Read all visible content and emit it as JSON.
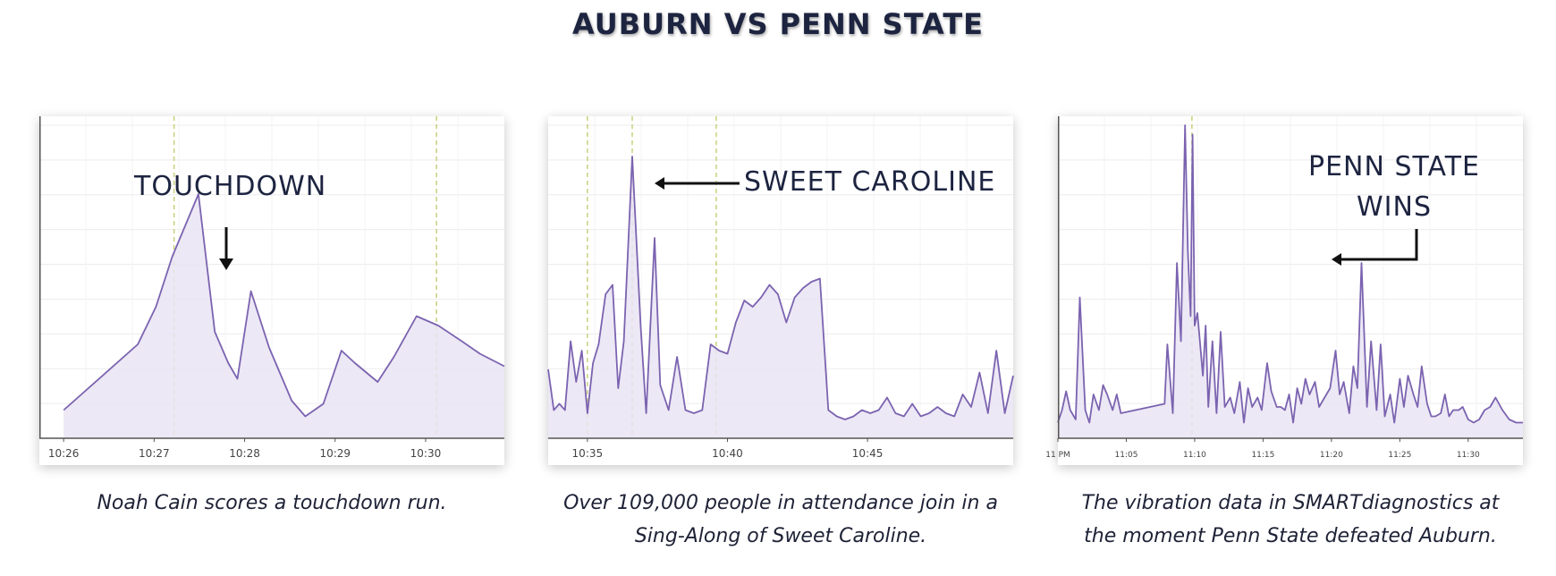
{
  "title": "AUBURN VS PENN STATE",
  "colors": {
    "line": "#7b63b0",
    "fill": "#e9e4f3",
    "marker": "#c9cf7a",
    "grid": "#ececec",
    "axis": "#555555",
    "title": "#1d2440"
  },
  "chart_data": [
    {
      "type": "area",
      "annotation": "TOUCHDOWN",
      "xticks": [
        "10:26",
        "10:27",
        "10:28",
        "10:29",
        "10:30"
      ],
      "xrange": [
        10.25,
        15.25
      ],
      "ylim": [
        0,
        100
      ],
      "markers": [
        11.6,
        14.5
      ],
      "x": [
        10.38,
        11.2,
        11.4,
        11.58,
        11.87,
        12.05,
        12.2,
        12.3,
        12.45,
        12.65,
        12.9,
        13.05,
        13.25,
        13.45,
        13.6,
        13.85,
        14.03,
        14.28,
        14.52,
        14.78,
        14.98,
        15.25
      ],
      "y": [
        9,
        30,
        42,
        58,
        78,
        34,
        24,
        19,
        47,
        29,
        12,
        7,
        11,
        28,
        24,
        18,
        26,
        39,
        36,
        31,
        27,
        23
      ],
      "caption": [
        "Noah Cain scores a touchdown run."
      ]
    },
    {
      "type": "area",
      "annotation": "SWEET CAROLINE",
      "xticks": [
        "10:35",
        "10:40",
        "10:45"
      ],
      "xrange": [
        33.6,
        50.2
      ],
      "ylim": [
        0,
        100
      ],
      "markers": [
        35,
        36.6,
        39.6
      ],
      "x": [
        33.6,
        33.8,
        34.0,
        34.2,
        34.4,
        34.6,
        34.8,
        35.0,
        35.2,
        35.4,
        35.65,
        35.9,
        36.1,
        36.3,
        36.6,
        36.9,
        37.1,
        37.4,
        37.6,
        37.9,
        38.2,
        38.5,
        38.8,
        39.1,
        39.4,
        39.7,
        40.0,
        40.3,
        40.6,
        40.9,
        41.2,
        41.5,
        41.8,
        42.1,
        42.4,
        42.7,
        43.0,
        43.3,
        43.6,
        43.9,
        44.2,
        44.5,
        44.8,
        45.1,
        45.4,
        45.7,
        46.0,
        46.3,
        46.6,
        46.9,
        47.2,
        47.5,
        47.8,
        48.1,
        48.4,
        48.7,
        49.0,
        49.3,
        49.6,
        49.9,
        50.2
      ],
      "y": [
        22,
        9,
        11,
        9,
        31,
        18,
        28,
        8,
        24,
        30,
        46,
        49,
        16,
        31,
        90,
        36,
        8,
        64,
        17,
        9,
        26,
        9,
        8,
        9,
        30,
        28,
        27,
        37,
        44,
        42,
        45,
        49,
        46,
        37,
        45,
        48,
        50,
        51,
        9,
        7,
        6,
        7,
        9,
        8,
        9,
        13,
        8,
        7,
        11,
        7,
        8,
        10,
        8,
        7,
        14,
        10,
        21,
        8,
        28,
        8,
        20
      ],
      "caption": [
        "Over 109,000 people in attendance join in a",
        "Sing-Along of Sweet Caroline."
      ]
    },
    {
      "type": "area",
      "annotation": [
        "PENN STATE",
        "WINS"
      ],
      "xticks": [
        "11 PM",
        "11:05",
        "11:10",
        "11:15",
        "11:20",
        "11:25",
        "11:30"
      ],
      "xrange": [
        0,
        34
      ],
      "ylim": [
        0,
        100
      ],
      "markers": [
        9.8
      ],
      "x": [
        0,
        0.3,
        0.6,
        0.9,
        1.3,
        1.6,
        2.0,
        2.3,
        2.6,
        3.0,
        3.3,
        3.6,
        4.0,
        4.3,
        4.6,
        7.8,
        8.0,
        8.4,
        8.7,
        9.0,
        9.3,
        9.5,
        9.7,
        9.85,
        10.0,
        10.2,
        10.4,
        10.6,
        10.8,
        11.0,
        11.3,
        11.6,
        11.9,
        12.2,
        12.6,
        12.9,
        13.3,
        13.6,
        13.9,
        14.2,
        14.6,
        14.9,
        15.3,
        15.6,
        16.0,
        16.3,
        16.6,
        16.9,
        17.2,
        17.5,
        17.8,
        18.1,
        18.4,
        18.8,
        19.1,
        19.5,
        19.9,
        20.3,
        20.6,
        20.9,
        21.3,
        21.6,
        21.9,
        22.2,
        22.6,
        22.9,
        23.3,
        23.6,
        23.9,
        24.3,
        24.6,
        25.0,
        25.3,
        25.6,
        26.0,
        26.3,
        26.6,
        27.0,
        27.3,
        27.6,
        28.0,
        28.3,
        28.6,
        28.9,
        29.3,
        29.6,
        30.0,
        30.4,
        30.8,
        31.2,
        31.6,
        32.0,
        32.5,
        33.0,
        33.5,
        34.0
      ],
      "y": [
        5,
        9,
        15,
        9,
        6,
        45,
        9,
        5,
        14,
        9,
        17,
        14,
        9,
        14,
        8,
        11,
        30,
        8,
        56,
        31,
        100,
        60,
        39,
        97,
        36,
        40,
        30,
        20,
        36,
        10,
        31,
        8,
        34,
        10,
        13,
        8,
        18,
        5,
        16,
        10,
        13,
        9,
        24,
        15,
        10,
        10,
        9,
        14,
        5,
        16,
        11,
        19,
        14,
        18,
        10,
        13,
        16,
        28,
        14,
        18,
        8,
        23,
        16,
        56,
        10,
        31,
        9,
        30,
        7,
        14,
        5,
        19,
        10,
        20,
        14,
        10,
        23,
        11,
        7,
        7,
        8,
        14,
        7,
        9,
        9,
        10,
        6,
        5,
        6,
        9,
        10,
        13,
        9,
        6,
        5,
        5
      ],
      "caption": [
        "The vibration data in SMARTdiagnostics at",
        "the moment Penn State defeated Auburn."
      ]
    }
  ]
}
